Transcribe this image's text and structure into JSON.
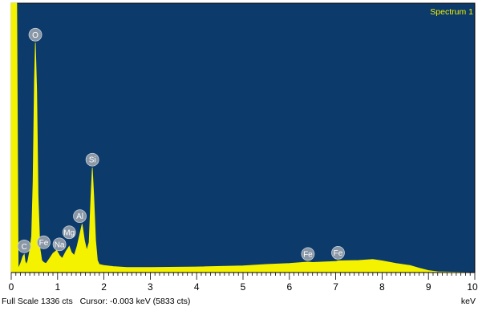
{
  "chart_data": {
    "type": "area",
    "title": "Spectrum 1",
    "xlabel": "keV",
    "xlim": [
      0,
      10
    ],
    "ylim": [
      0,
      1336
    ],
    "x_ticks": [
      "0",
      "1",
      "2",
      "3",
      "4",
      "5",
      "6",
      "7",
      "8",
      "9",
      "10"
    ],
    "series": [
      {
        "x": [
          0,
          0.05,
          0.08,
          0.1,
          0.12,
          0.15,
          0.2,
          0.25,
          0.28,
          0.3,
          0.33,
          0.36,
          0.4,
          0.44,
          0.47,
          0.5,
          0.52,
          0.55,
          0.58,
          0.62,
          0.66,
          0.7,
          0.75,
          0.8,
          0.9,
          0.98,
          1.04,
          1.1,
          1.18,
          1.25,
          1.3,
          1.36,
          1.42,
          1.48,
          1.53,
          1.58,
          1.63,
          1.68,
          1.72,
          1.75,
          1.78,
          1.82,
          1.86,
          1.9,
          2.0,
          2.2,
          2.5,
          3,
          4,
          5,
          5.5,
          6,
          6.4,
          6.5,
          7,
          7.05,
          7.5,
          7.8,
          8,
          8.3,
          8.6,
          8.8,
          9,
          9.2,
          10
        ],
        "y": [
          1336,
          1336,
          1336,
          1336,
          1336,
          20,
          45,
          80,
          90,
          55,
          40,
          60,
          110,
          180,
          450,
          950,
          1140,
          900,
          380,
          120,
          60,
          50,
          45,
          60,
          95,
          110,
          85,
          70,
          105,
          130,
          100,
          85,
          130,
          190,
          240,
          160,
          110,
          150,
          380,
          520,
          380,
          160,
          60,
          40,
          35,
          30,
          25,
          25,
          28,
          33,
          40,
          45,
          52,
          50,
          55,
          58,
          60,
          65,
          58,
          45,
          35,
          22,
          10,
          4,
          0
        ]
      }
    ],
    "peak_labels": [
      {
        "label": "C",
        "x": 0.28,
        "y": 90
      },
      {
        "label": "O",
        "x": 0.52,
        "y": 1140
      },
      {
        "label": "Fe",
        "x": 0.7,
        "y": 110
      },
      {
        "label": "Na",
        "x": 1.04,
        "y": 100
      },
      {
        "label": "Mg",
        "x": 1.25,
        "y": 160
      },
      {
        "label": "Al",
        "x": 1.48,
        "y": 240
      },
      {
        "label": "Si",
        "x": 1.75,
        "y": 520
      },
      {
        "label": "Fe",
        "x": 6.4,
        "y": 52
      },
      {
        "label": "Fe",
        "x": 7.05,
        "y": 58
      }
    ],
    "colors": {
      "background": "#0b3a6b",
      "fill": "#f5f200",
      "label_circle": "#8a97a6",
      "title": "#f5f200"
    }
  },
  "status": {
    "full_scale": "Full Scale 1336 cts",
    "cursor": "Cursor: -0.003 keV (5833 cts)",
    "unit": "keV"
  }
}
